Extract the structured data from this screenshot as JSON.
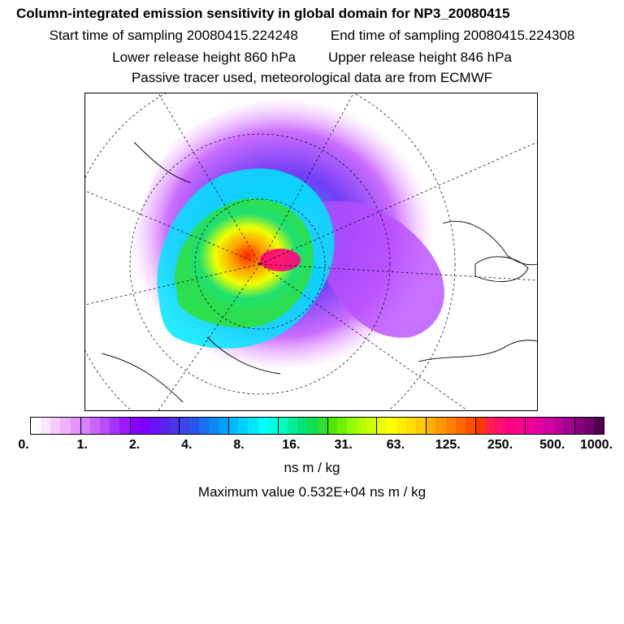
{
  "header": {
    "title": "Column-integrated emission sensitivity in global domain for NP3_20080415",
    "start_time": "Start time of sampling 20080415.224248",
    "end_time": "End time of sampling 20080415.224308",
    "lower_height": "Lower release height  860 hPa",
    "upper_height": "Upper release height  846 hPa",
    "note": "Passive tracer used, meteorological data are from ECMWF"
  },
  "map": {
    "projection": "polar-stereographic",
    "content": "emission sensitivity field over the Arctic"
  },
  "colorbar": {
    "tick_labels": [
      "0.",
      "1.",
      "2.",
      "4.",
      "8.",
      "16.",
      "31.",
      "63.",
      "125.",
      "250.",
      "500.",
      "1000."
    ],
    "units": "ns m / kg",
    "colors": [
      "#ffffff",
      "#fbe6ff",
      "#f6ccff",
      "#f0b3ff",
      "#e496ff",
      "#d880ff",
      "#c866ff",
      "#b84dff",
      "#a633ff",
      "#9a1aff",
      "#8a00ff",
      "#7a00ff",
      "#6a11f5",
      "#5a22ee",
      "#4a33ea",
      "#3a44e8",
      "#2a55ea",
      "#1a70f0",
      "#0a88f5",
      "#00a0ff",
      "#00b8ff",
      "#00d0ff",
      "#00e6ff",
      "#00ffff",
      "#00ffe0",
      "#00ffbc",
      "#00f098",
      "#00e078",
      "#10e050",
      "#30e030",
      "#50e800",
      "#70f000",
      "#90ff00",
      "#b0ff00",
      "#d0ff00",
      "#f0ff00",
      "#ffff00",
      "#ffee00",
      "#ffdd00",
      "#ffcc00",
      "#ffb000",
      "#ff9800",
      "#ff8000",
      "#ff6800",
      "#ff5000",
      "#ff3800",
      "#ff2050",
      "#ff1070",
      "#ff0080",
      "#ff0090",
      "#f0009a",
      "#e000a0",
      "#d000a0",
      "#b80098",
      "#a00090",
      "#880080",
      "#700070",
      "#500050"
    ],
    "maximum_value": "Maximum value  0.532E+04 ns m / kg"
  }
}
